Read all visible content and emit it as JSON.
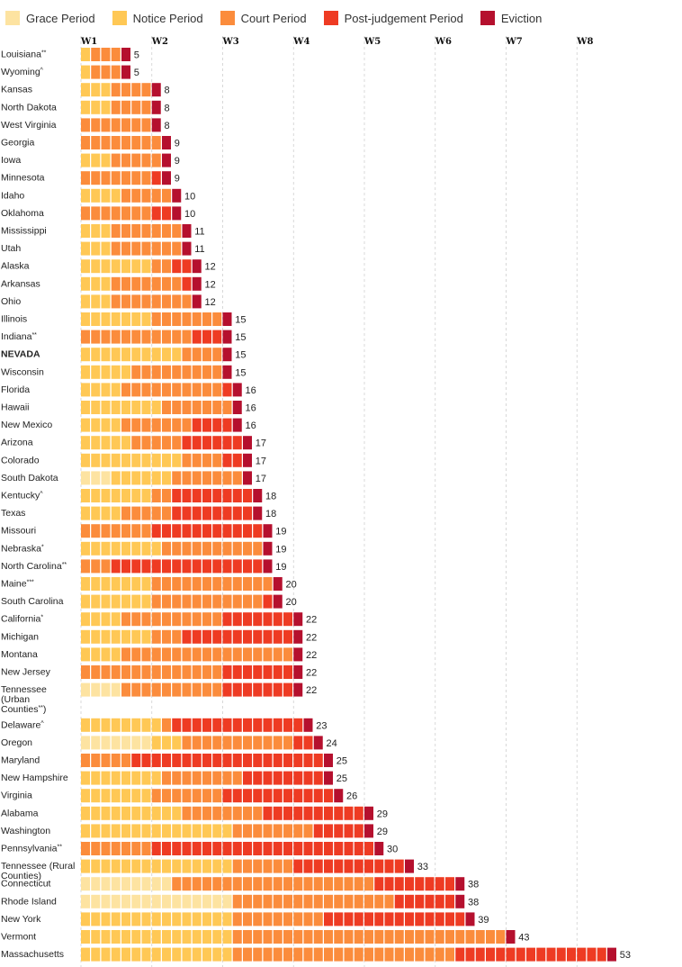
{
  "legend": [
    {
      "key": "grace",
      "label": "Grace Period",
      "color": "#fde3a1"
    },
    {
      "key": "notice",
      "label": "Notice Period",
      "color": "#ffc855"
    },
    {
      "key": "court",
      "label": "Court Period",
      "color": "#fb8c3c"
    },
    {
      "key": "post",
      "label": "Post-judgement Period",
      "color": "#ee3b23"
    },
    {
      "key": "evict",
      "label": "Eviction",
      "color": "#b5102e"
    }
  ],
  "chart_data": {
    "type": "bar",
    "orientation": "horizontal",
    "stacked": true,
    "unit": "days",
    "x_axis_labels": [
      "W1",
      "W2",
      "W3",
      "W4",
      "W5",
      "W6",
      "W7",
      "W8"
    ],
    "grid": true,
    "legend_position": "top-left",
    "series_order": [
      "grace",
      "notice",
      "court",
      "post",
      "evict"
    ],
    "rows": [
      {
        "label": "Louisiana",
        "mark": "**",
        "grace": 0,
        "notice": 1,
        "court": 3,
        "post": 0,
        "evict": 1,
        "total": 5
      },
      {
        "label": "Wyoming",
        "mark": "^",
        "grace": 0,
        "notice": 1,
        "court": 3,
        "post": 0,
        "evict": 1,
        "total": 5
      },
      {
        "label": "Kansas",
        "mark": "",
        "grace": 0,
        "notice": 3,
        "court": 4,
        "post": 0,
        "evict": 1,
        "total": 8
      },
      {
        "label": "North Dakota",
        "mark": "",
        "grace": 0,
        "notice": 3,
        "court": 4,
        "post": 0,
        "evict": 1,
        "total": 8
      },
      {
        "label": "West Virginia",
        "mark": "",
        "grace": 0,
        "notice": 0,
        "court": 7,
        "post": 0,
        "evict": 1,
        "total": 8
      },
      {
        "label": "Georgia",
        "mark": "",
        "grace": 0,
        "notice": 0,
        "court": 8,
        "post": 0,
        "evict": 1,
        "total": 9
      },
      {
        "label": "Iowa",
        "mark": "",
        "grace": 0,
        "notice": 3,
        "court": 5,
        "post": 0,
        "evict": 1,
        "total": 9
      },
      {
        "label": "Minnesota",
        "mark": "",
        "grace": 0,
        "notice": 0,
        "court": 7,
        "post": 1,
        "evict": 1,
        "total": 9
      },
      {
        "label": "Idaho",
        "mark": "",
        "grace": 0,
        "notice": 4,
        "court": 5,
        "post": 0,
        "evict": 1,
        "total": 10
      },
      {
        "label": "Oklahoma",
        "mark": "",
        "grace": 0,
        "notice": 0,
        "court": 7,
        "post": 2,
        "evict": 1,
        "total": 10
      },
      {
        "label": "Mississippi",
        "mark": "",
        "grace": 0,
        "notice": 3,
        "court": 7,
        "post": 0,
        "evict": 1,
        "total": 11
      },
      {
        "label": "Utah",
        "mark": "",
        "grace": 0,
        "notice": 3,
        "court": 7,
        "post": 0,
        "evict": 1,
        "total": 11
      },
      {
        "label": "Alaska",
        "mark": "",
        "grace": 0,
        "notice": 7,
        "court": 2,
        "post": 2,
        "evict": 1,
        "total": 12
      },
      {
        "label": "Arkansas",
        "mark": "",
        "grace": 0,
        "notice": 3,
        "court": 7,
        "post": 1,
        "evict": 1,
        "total": 12
      },
      {
        "label": "Ohio",
        "mark": "",
        "grace": 0,
        "notice": 3,
        "court": 8,
        "post": 0,
        "evict": 1,
        "total": 12
      },
      {
        "label": "Illinois",
        "mark": "",
        "grace": 0,
        "notice": 7,
        "court": 7,
        "post": 0,
        "evict": 1,
        "total": 15
      },
      {
        "label": "Indiana",
        "mark": "**",
        "grace": 0,
        "notice": 0,
        "court": 11,
        "post": 3,
        "evict": 1,
        "total": 15
      },
      {
        "label": "NEVADA",
        "mark": "",
        "bold": true,
        "grace": 0,
        "notice": 10,
        "court": 4,
        "post": 0,
        "evict": 1,
        "total": 15
      },
      {
        "label": "Wisconsin",
        "mark": "",
        "grace": 0,
        "notice": 5,
        "court": 9,
        "post": 0,
        "evict": 1,
        "total": 15
      },
      {
        "label": "Florida",
        "mark": "",
        "grace": 0,
        "notice": 4,
        "court": 10,
        "post": 1,
        "evict": 1,
        "total": 16
      },
      {
        "label": "Hawaii",
        "mark": "",
        "grace": 0,
        "notice": 8,
        "court": 7,
        "post": 0,
        "evict": 1,
        "total": 16
      },
      {
        "label": "New Mexico",
        "mark": "",
        "grace": 0,
        "notice": 4,
        "court": 7,
        "post": 4,
        "evict": 1,
        "total": 16
      },
      {
        "label": "Arizona",
        "mark": "",
        "grace": 0,
        "notice": 5,
        "court": 5,
        "post": 6,
        "evict": 1,
        "total": 17
      },
      {
        "label": "Colorado",
        "mark": "",
        "grace": 0,
        "notice": 10,
        "court": 4,
        "post": 2,
        "evict": 1,
        "total": 17
      },
      {
        "label": "South Dakota",
        "mark": "",
        "grace": 3,
        "notice": 6,
        "court": 7,
        "post": 0,
        "evict": 1,
        "total": 17
      },
      {
        "label": "Kentucky",
        "mark": "^",
        "grace": 0,
        "notice": 7,
        "court": 2,
        "post": 8,
        "evict": 1,
        "total": 18
      },
      {
        "label": "Texas",
        "mark": "",
        "grace": 0,
        "notice": 4,
        "court": 5,
        "post": 8,
        "evict": 1,
        "total": 18
      },
      {
        "label": "Missouri",
        "mark": "",
        "grace": 0,
        "notice": 0,
        "court": 7,
        "post": 11,
        "evict": 1,
        "total": 19
      },
      {
        "label": "Nebraska",
        "mark": "*",
        "grace": 0,
        "notice": 8,
        "court": 10,
        "post": 0,
        "evict": 1,
        "total": 19
      },
      {
        "label": "North Carolina",
        "mark": "**",
        "grace": 0,
        "notice": 0,
        "court": 3,
        "post": 15,
        "evict": 1,
        "total": 19
      },
      {
        "label": "Maine",
        "mark": "***",
        "grace": 0,
        "notice": 7,
        "court": 12,
        "post": 0,
        "evict": 1,
        "total": 20
      },
      {
        "label": "South Carolina",
        "mark": "",
        "grace": 0,
        "notice": 7,
        "court": 11,
        "post": 1,
        "evict": 1,
        "total": 20
      },
      {
        "label": "California",
        "mark": "*",
        "grace": 0,
        "notice": 4,
        "court": 10,
        "post": 7,
        "evict": 1,
        "total": 22
      },
      {
        "label": "Michigan",
        "mark": "",
        "grace": 0,
        "notice": 7,
        "court": 3,
        "post": 11,
        "evict": 1,
        "total": 22
      },
      {
        "label": "Montana",
        "mark": "",
        "grace": 0,
        "notice": 4,
        "court": 17,
        "post": 0,
        "evict": 1,
        "total": 22
      },
      {
        "label": "New Jersey",
        "mark": "",
        "grace": 0,
        "notice": 0,
        "court": 14,
        "post": 7,
        "evict": 1,
        "total": 22
      },
      {
        "label": "Tennessee (Urban Counties)",
        "mark": "**",
        "grace": 4,
        "notice": 0,
        "court": 10,
        "post": 7,
        "evict": 1,
        "total": 22
      },
      {
        "label": "Delaware",
        "mark": "^",
        "grace": 0,
        "notice": 8,
        "court": 1,
        "post": 13,
        "evict": 1,
        "total": 23
      },
      {
        "label": "Oregon",
        "mark": "",
        "grace": 7,
        "notice": 3,
        "court": 11,
        "post": 2,
        "evict": 1,
        "total": 24
      },
      {
        "label": "Maryland",
        "mark": "",
        "grace": 0,
        "notice": 0,
        "court": 5,
        "post": 19,
        "evict": 1,
        "total": 25
      },
      {
        "label": "New Hampshire",
        "mark": "",
        "grace": 0,
        "notice": 8,
        "court": 8,
        "post": 8,
        "evict": 1,
        "total": 25
      },
      {
        "label": "Virginia",
        "mark": "",
        "grace": 0,
        "notice": 7,
        "court": 7,
        "post": 11,
        "evict": 1,
        "total": 26
      },
      {
        "label": "Alabama",
        "mark": "",
        "grace": 0,
        "notice": 10,
        "court": 8,
        "post": 10,
        "evict": 1,
        "total": 29
      },
      {
        "label": "Washington",
        "mark": "",
        "grace": 0,
        "notice": 15,
        "court": 8,
        "post": 5,
        "evict": 1,
        "total": 29
      },
      {
        "label": "Pennsylvania",
        "mark": "**",
        "grace": 0,
        "notice": 0,
        "court": 7,
        "post": 22,
        "evict": 1,
        "total": 30
      },
      {
        "label": "Tennessee (Rural Counties)",
        "mark": "",
        "grace": 0,
        "notice": 15,
        "court": 6,
        "post": 11,
        "evict": 1,
        "total": 33
      },
      {
        "label": "Connecticut",
        "mark": "",
        "grace": 9,
        "notice": 0,
        "court": 20,
        "post": 8,
        "evict": 1,
        "total": 38
      },
      {
        "label": "Rhode Island",
        "mark": "",
        "grace": 15,
        "notice": 0,
        "court": 16,
        "post": 6,
        "evict": 1,
        "total": 38
      },
      {
        "label": "New York",
        "mark": "",
        "grace": 0,
        "notice": 15,
        "court": 9,
        "post": 14,
        "evict": 1,
        "total": 39
      },
      {
        "label": "Vermont",
        "mark": "",
        "grace": 0,
        "notice": 15,
        "court": 27,
        "post": 0,
        "evict": 1,
        "total": 43
      },
      {
        "label": "Massachusetts",
        "mark": "",
        "grace": 0,
        "notice": 15,
        "court": 22,
        "post": 15,
        "evict": 1,
        "total": 53
      }
    ]
  }
}
